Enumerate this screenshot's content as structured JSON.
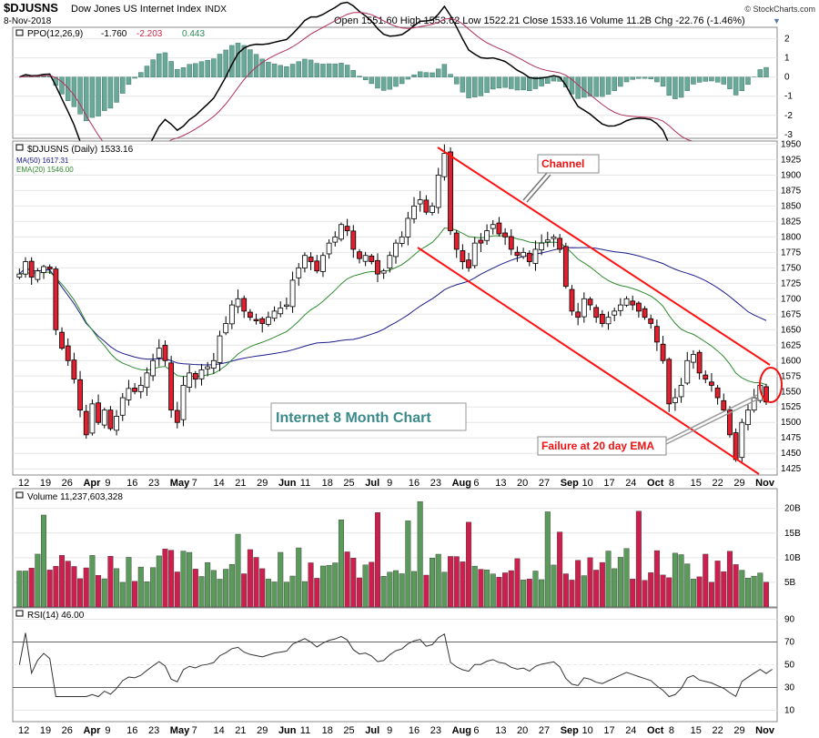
{
  "header": {
    "symbol": "$DJUSNS",
    "name": "Dow Jones US Internet Index",
    "exchange": "INDX",
    "date": "8-Nov-2018",
    "quote": "Open 1551.60   High 1553.62   Low 1522.21   Close 1533.16   Volume 11.2B   Chg -22.76 (-1.46%)",
    "quote_arrow": "▼",
    "brand": "© StockCharts.com"
  },
  "ppo": {
    "label_prefix": "PPO(12,26,9)",
    "v1": "-1.760",
    "v2": "-2.203",
    "v3": "0.443",
    "ticks": [
      "2",
      "1",
      "0",
      "-1",
      "-2",
      "-3"
    ]
  },
  "price": {
    "label": "$DJUSNS (Daily) 1533.16",
    "ma_label": "MA(50) 1617.31",
    "ema_label": "EMA(20) 1546.00",
    "ticks": [
      "1950",
      "1925",
      "1900",
      "1875",
      "1850",
      "1825",
      "1800",
      "1775",
      "1750",
      "1725",
      "1700",
      "1675",
      "1650",
      "1625",
      "1600",
      "1575",
      "1550",
      "1525",
      "1500",
      "1475",
      "1450",
      "1425"
    ],
    "title_box": "Internet 8 Month Chart",
    "annotation_channel": "Channel",
    "annotation_failure": "Failure at 20 day EMA"
  },
  "volume": {
    "label": "Volume 11,237,603,328",
    "ticks": [
      "20B",
      "15B",
      "10B",
      "5B"
    ]
  },
  "rsi": {
    "label": "RSI(14) 46.00",
    "ticks": [
      "90",
      "70",
      "50",
      "30",
      "10"
    ]
  },
  "xaxis": {
    "labels": [
      "12",
      "19",
      "26",
      "Apr",
      "9",
      "16",
      "23",
      "May",
      "7",
      "14",
      "21",
      "29",
      "Jun",
      "11",
      "18",
      "25",
      "Jul",
      "9",
      "16",
      "23",
      "Aug",
      "6",
      "13",
      "20",
      "27",
      "Sep",
      "10",
      "17",
      "24",
      "Oct",
      "8",
      "15",
      "22",
      "29",
      "Nov"
    ]
  },
  "colors": {
    "up": "#5a9a5a",
    "down": "#cc1f4d",
    "candle_up": "#ffffff",
    "candle_down": "#e0202e",
    "ma50": "#1c1c8c",
    "ema20": "#2e8b2e",
    "annotation": "#ff0000",
    "title_text": "#3a8a8a",
    "grid": "#e6e6e6"
  },
  "chart_data": [
    {
      "type": "candlestick",
      "title": "$DJUSNS (Daily)",
      "ylim": [
        1415,
        1955
      ],
      "close_series": [
        1740,
        1760,
        1735,
        1745,
        1752,
        1748,
        1650,
        1620,
        1600,
        1570,
        1520,
        1480,
        1530,
        1500,
        1520,
        1490,
        1510,
        1540,
        1555,
        1550,
        1560,
        1580,
        1600,
        1620,
        1600,
        1520,
        1500,
        1560,
        1580,
        1570,
        1585,
        1590,
        1600,
        1640,
        1660,
        1690,
        1700,
        1680,
        1670,
        1665,
        1660,
        1670,
        1680,
        1685,
        1690,
        1730,
        1750,
        1770,
        1760,
        1745,
        1770,
        1790,
        1800,
        1820,
        1810,
        1780,
        1765,
        1770,
        1760,
        1740,
        1745,
        1770,
        1790,
        1800,
        1830,
        1850,
        1860,
        1840,
        1850,
        1900,
        1935,
        1810,
        1780,
        1760,
        1750,
        1790,
        1790,
        1810,
        1820,
        1805,
        1800,
        1780,
        1770,
        1775,
        1760,
        1780,
        1790,
        1795,
        1800,
        1780,
        1720,
        1680,
        1670,
        1700,
        1690,
        1670,
        1660,
        1670,
        1680,
        1690,
        1700,
        1690,
        1680,
        1670,
        1660,
        1630,
        1600,
        1530,
        1540,
        1560,
        1600,
        1610,
        1580,
        1570,
        1560,
        1540,
        1520,
        1480,
        1440,
        1500,
        1520,
        1540,
        1560,
        1533
      ],
      "ma50_range": [
        1617,
        1810
      ],
      "ema20_last": 1546.0
    },
    {
      "type": "line",
      "title": "PPO(12,26,9)",
      "series": [
        {
          "name": "PPO",
          "last": -1.76
        },
        {
          "name": "Signal",
          "last": -2.203
        },
        {
          "name": "Histogram",
          "last": 0.443
        }
      ],
      "ylim": [
        -3.2,
        2.6
      ]
    },
    {
      "type": "bar",
      "title": "Volume",
      "last": 11237603328,
      "ylim": [
        0,
        24000000000
      ]
    },
    {
      "type": "line",
      "title": "RSI(14)",
      "last": 46.0,
      "ylim": [
        0,
        100
      ],
      "levels": [
        30,
        70
      ]
    }
  ]
}
